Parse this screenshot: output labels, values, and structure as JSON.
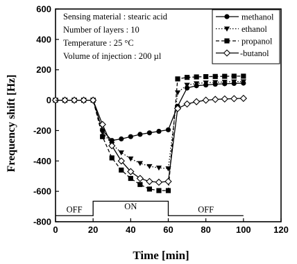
{
  "chart_data": {
    "type": "line",
    "xlabel": "Time [min]",
    "ylabel": "Frequency shift [Hz]",
    "xlim": [
      0,
      120
    ],
    "ylim": [
      -800,
      600
    ],
    "xticks": [
      0,
      20,
      40,
      60,
      80,
      100,
      120
    ],
    "yticks": [
      600,
      400,
      200,
      0,
      -200,
      -400,
      -600,
      -800
    ],
    "grid": false,
    "legend_position": "top-right",
    "info_lines": [
      "Sensing material : stearic acid",
      "Number of layers : 10",
      "Temperature : 25 °C",
      "Volume of injection : 200  µl"
    ],
    "phases": [
      {
        "label": "OFF",
        "x_start": 0,
        "x_end": 20
      },
      {
        "label": "ON",
        "x_start": 20,
        "x_end": 60
      },
      {
        "label": "OFF",
        "x_start": 60,
        "x_end": 100
      }
    ],
    "series": [
      {
        "name": "methanol",
        "marker": "filled-circle",
        "line": "solid",
        "x": [
          0,
          5,
          10,
          15,
          20,
          25,
          30,
          35,
          40,
          45,
          50,
          55,
          60,
          65,
          70,
          75,
          80,
          85,
          90,
          95,
          100
        ],
        "y": [
          0,
          0,
          0,
          0,
          0,
          -200,
          -265,
          -255,
          -240,
          -225,
          -215,
          -205,
          -195,
          -40,
          80,
          95,
          100,
          105,
          108,
          110,
          112
        ]
      },
      {
        "name": "ethanol",
        "marker": "filled-triangle-down",
        "line": "dotted",
        "x": [
          0,
          5,
          10,
          15,
          20,
          25,
          30,
          35,
          40,
          45,
          50,
          55,
          60,
          65,
          70,
          75,
          80,
          85,
          90,
          95,
          100
        ],
        "y": [
          0,
          0,
          0,
          0,
          0,
          -210,
          -290,
          -345,
          -385,
          -415,
          -435,
          -445,
          -450,
          50,
          100,
          110,
          115,
          118,
          120,
          122,
          123
        ]
      },
      {
        "name": "propanol",
        "marker": "filled-square",
        "line": "dashed",
        "x": [
          0,
          5,
          10,
          15,
          20,
          25,
          30,
          35,
          40,
          45,
          50,
          55,
          60,
          65,
          70,
          75,
          80,
          85,
          90,
          95,
          100
        ],
        "y": [
          0,
          0,
          0,
          0,
          0,
          -240,
          -380,
          -460,
          -515,
          -555,
          -585,
          -595,
          -595,
          140,
          150,
          153,
          155,
          156,
          157,
          158,
          158
        ]
      },
      {
        "name": "butanol",
        "marker": "open-diamond",
        "line": "solid",
        "x": [
          0,
          5,
          10,
          15,
          20,
          25,
          30,
          35,
          40,
          45,
          50,
          55,
          60,
          65,
          70,
          75,
          80,
          85,
          90,
          95,
          100
        ],
        "y": [
          0,
          0,
          0,
          0,
          0,
          -160,
          -300,
          -400,
          -470,
          -515,
          -535,
          -540,
          -535,
          -55,
          -25,
          -10,
          0,
          5,
          8,
          10,
          12
        ]
      }
    ]
  }
}
